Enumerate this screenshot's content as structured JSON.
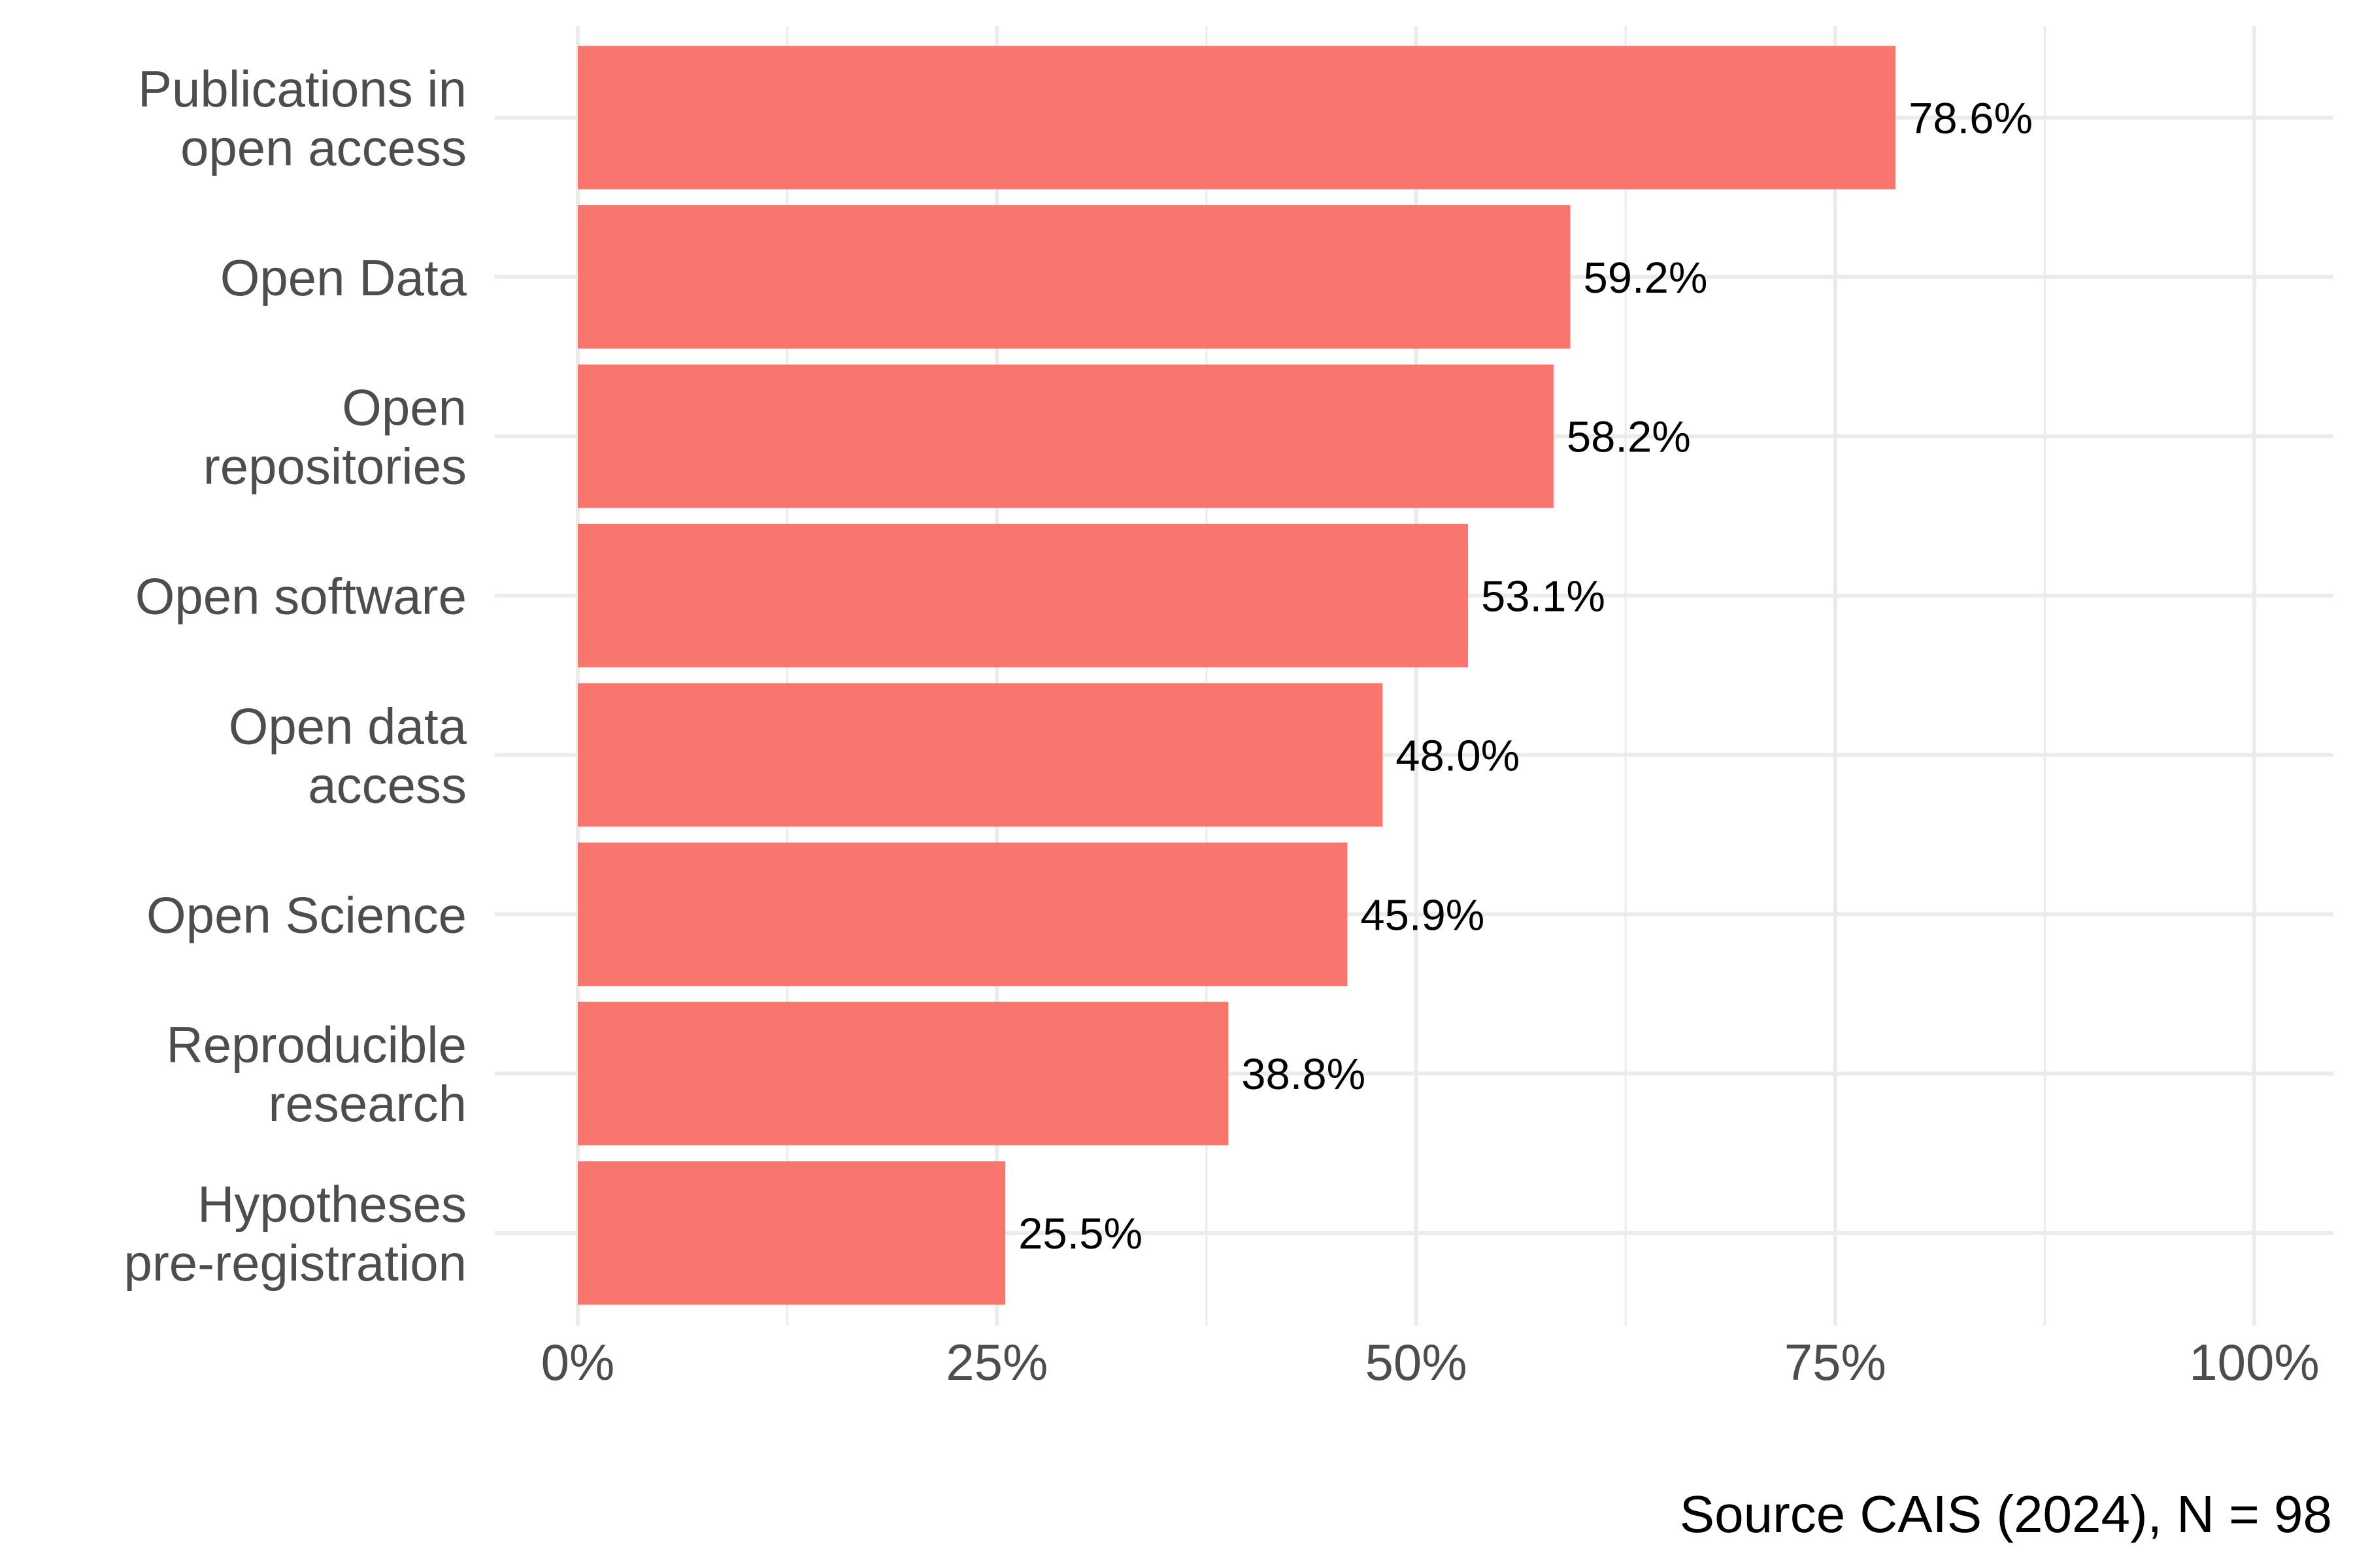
{
  "chart_data": {
    "type": "bar",
    "orientation": "horizontal",
    "categories": [
      [
        "Publications in",
        "open access"
      ],
      [
        "Open Data"
      ],
      [
        "Open",
        "repositories"
      ],
      [
        "Open software"
      ],
      [
        "Open data",
        "access"
      ],
      [
        "Open Science"
      ],
      [
        "Reproducible",
        "research"
      ],
      [
        "Hypotheses",
        "pre-registration"
      ]
    ],
    "values": [
      78.6,
      59.2,
      58.2,
      53.1,
      48.0,
      45.9,
      38.8,
      25.5
    ],
    "value_labels": [
      "78.6%",
      "59.2%",
      "58.2%",
      "53.1%",
      "48.0%",
      "45.9%",
      "38.8%",
      "25.5%"
    ],
    "xlim": [
      0,
      100
    ],
    "x_ticks": [
      0,
      25,
      50,
      75,
      100
    ],
    "x_tick_labels": [
      "0%",
      "25%",
      "50%",
      "75%",
      "100%"
    ],
    "grid": true,
    "bar_color": "#F8766D",
    "caption": "Source CAIS (2024), N = 98"
  }
}
